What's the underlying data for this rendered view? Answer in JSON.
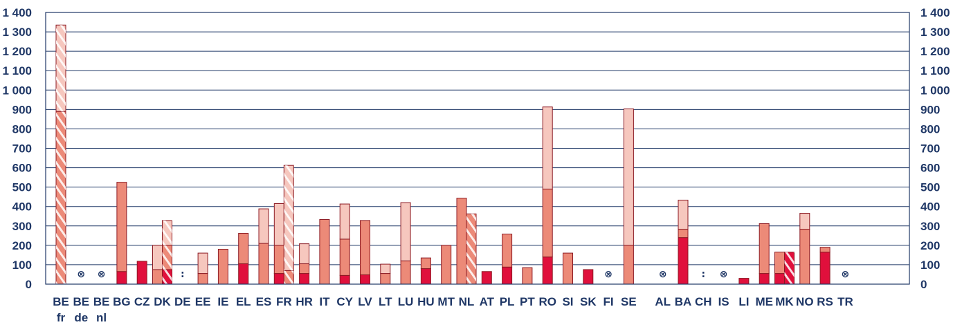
{
  "chart_data": {
    "type": "bar",
    "stacked": true,
    "ylim": [
      0,
      1400
    ],
    "yticks": [
      0,
      100,
      200,
      300,
      400,
      500,
      600,
      700,
      800,
      900,
      1000,
      1100,
      1200,
      1300,
      1400
    ],
    "ytick_labels": [
      "0",
      "100",
      "200",
      "300",
      "400",
      "500",
      "600",
      "700",
      "800",
      "900",
      "1 000",
      "1 100",
      "1 200",
      "1 300",
      "1 400"
    ],
    "grid": true,
    "legend": "none",
    "colors": {
      "dark": "#e0103c",
      "medium": "#ec8a78",
      "light": "#f6c7be",
      "outline": "#8c1a23"
    },
    "categories": [
      {
        "label": "BE",
        "sub": "fr",
        "bars": [
          {
            "segments": [
              [
                0,
                890,
                "medium"
              ],
              [
                890,
                1335,
                "light"
              ]
            ],
            "hatched": true
          }
        ]
      },
      {
        "label": "BE",
        "sub": "de",
        "symbol": "⊗",
        "bars": []
      },
      {
        "label": "BE",
        "sub": "nl",
        "symbol": "⊗",
        "bars": []
      },
      {
        "label": "BG",
        "bars": [
          {
            "segments": [
              [
                0,
                65,
                "dark"
              ],
              [
                65,
                525,
                "medium"
              ]
            ]
          }
        ]
      },
      {
        "label": "CZ",
        "bars": [
          {
            "segments": [
              [
                0,
                118,
                "dark"
              ]
            ]
          }
        ]
      },
      {
        "label": "DK",
        "bars": [
          {
            "segments": [
              [
                0,
                75,
                "medium"
              ],
              [
                75,
                200,
                "light"
              ]
            ]
          },
          {
            "segments": [
              [
                0,
                75,
                "dark"
              ],
              [
                75,
                200,
                "medium"
              ],
              [
                200,
                328,
                "light"
              ]
            ],
            "hatched": true
          }
        ]
      },
      {
        "label": "DE",
        "symbol": ":",
        "bars": []
      },
      {
        "label": "EE",
        "bars": [
          {
            "segments": [
              [
                0,
                55,
                "medium"
              ],
              [
                55,
                160,
                "light"
              ]
            ]
          }
        ]
      },
      {
        "label": "IE",
        "bars": [
          {
            "segments": [
              [
                0,
                180,
                "medium"
              ]
            ]
          }
        ]
      },
      {
        "label": "EL",
        "bars": [
          {
            "segments": [
              [
                0,
                105,
                "dark"
              ],
              [
                105,
                262,
                "medium"
              ]
            ]
          }
        ]
      },
      {
        "label": "ES",
        "bars": [
          {
            "segments": [
              [
                0,
                210,
                "medium"
              ],
              [
                210,
                388,
                "light"
              ]
            ]
          }
        ]
      },
      {
        "label": "FR",
        "bars": [
          {
            "segments": [
              [
                0,
                55,
                "dark"
              ],
              [
                55,
                200,
                "medium"
              ],
              [
                200,
                415,
                "light"
              ]
            ]
          },
          {
            "segments": [
              [
                0,
                70,
                "medium"
              ],
              [
                70,
                612,
                "light"
              ]
            ],
            "hatched": true
          }
        ]
      },
      {
        "label": "HR",
        "bars": [
          {
            "segments": [
              [
                0,
                55,
                "dark"
              ],
              [
                55,
                105,
                "medium"
              ],
              [
                105,
                208,
                "light"
              ]
            ]
          }
        ]
      },
      {
        "label": "IT",
        "bars": [
          {
            "segments": [
              [
                0,
                333,
                "medium"
              ]
            ]
          }
        ]
      },
      {
        "label": "CY",
        "bars": [
          {
            "segments": [
              [
                0,
                45,
                "dark"
              ],
              [
                45,
                232,
                "medium"
              ],
              [
                232,
                413,
                "light"
              ]
            ]
          }
        ]
      },
      {
        "label": "LV",
        "bars": [
          {
            "segments": [
              [
                0,
                48,
                "dark"
              ],
              [
                48,
                328,
                "medium"
              ]
            ]
          }
        ]
      },
      {
        "label": "LT",
        "bars": [
          {
            "segments": [
              [
                0,
                55,
                "medium"
              ],
              [
                55,
                103,
                "light"
              ]
            ]
          }
        ]
      },
      {
        "label": "LU",
        "bars": [
          {
            "segments": [
              [
                0,
                120,
                "medium"
              ],
              [
                120,
                420,
                "light"
              ]
            ]
          }
        ]
      },
      {
        "label": "HU",
        "bars": [
          {
            "segments": [
              [
                0,
                80,
                "dark"
              ],
              [
                80,
                135,
                "medium"
              ]
            ]
          }
        ]
      },
      {
        "label": "MT",
        "bars": [
          {
            "segments": [
              [
                0,
                200,
                "medium"
              ]
            ]
          }
        ]
      },
      {
        "label": "NL",
        "bars": [
          {
            "segments": [
              [
                0,
                443,
                "medium"
              ]
            ]
          },
          {
            "segments": [
              [
                0,
                362,
                "medium"
              ]
            ],
            "hatched": true
          }
        ]
      },
      {
        "label": "AT",
        "bars": [
          {
            "segments": [
              [
                0,
                65,
                "dark"
              ]
            ]
          }
        ]
      },
      {
        "label": "PL",
        "bars": [
          {
            "segments": [
              [
                0,
                88,
                "dark"
              ],
              [
                88,
                258,
                "medium"
              ]
            ]
          }
        ]
      },
      {
        "label": "PT",
        "bars": [
          {
            "segments": [
              [
                0,
                85,
                "medium"
              ]
            ]
          }
        ]
      },
      {
        "label": "RO",
        "bars": [
          {
            "segments": [
              [
                0,
                140,
                "dark"
              ],
              [
                140,
                490,
                "medium"
              ],
              [
                490,
                913,
                "light"
              ]
            ]
          }
        ]
      },
      {
        "label": "SI",
        "bars": [
          {
            "segments": [
              [
                0,
                160,
                "medium"
              ]
            ]
          }
        ]
      },
      {
        "label": "SK",
        "bars": [
          {
            "segments": [
              [
                0,
                75,
                "dark"
              ]
            ]
          }
        ]
      },
      {
        "label": "FI",
        "symbol": "⊗",
        "bars": []
      },
      {
        "label": "SE",
        "bars": [
          {
            "segments": [
              [
                0,
                200,
                "medium"
              ],
              [
                200,
                903,
                "light"
              ]
            ]
          }
        ]
      },
      {
        "label": "AL",
        "symbol": "⊗",
        "bars": [],
        "gap_before": true
      },
      {
        "label": "BA",
        "bars": [
          {
            "segments": [
              [
                0,
                240,
                "dark"
              ],
              [
                240,
                283,
                "medium"
              ],
              [
                283,
                433,
                "light"
              ]
            ]
          }
        ]
      },
      {
        "label": "CH",
        "symbol": ":",
        "bars": []
      },
      {
        "label": "IS",
        "symbol": "⊗",
        "bars": []
      },
      {
        "label": "LI",
        "bars": [
          {
            "segments": [
              [
                0,
                30,
                "dark"
              ]
            ]
          }
        ]
      },
      {
        "label": "ME",
        "bars": [
          {
            "segments": [
              [
                0,
                55,
                "dark"
              ],
              [
                55,
                312,
                "medium"
              ]
            ]
          }
        ]
      },
      {
        "label": "MK",
        "bars": [
          {
            "segments": [
              [
                0,
                55,
                "dark"
              ],
              [
                55,
                165,
                "medium"
              ]
            ]
          },
          {
            "segments": [
              [
                0,
                165,
                "dark"
              ]
            ],
            "hatched": true
          }
        ]
      },
      {
        "label": "NO",
        "bars": [
          {
            "segments": [
              [
                0,
                283,
                "medium"
              ],
              [
                283,
                365,
                "light"
              ]
            ]
          }
        ]
      },
      {
        "label": "RS",
        "bars": [
          {
            "segments": [
              [
                0,
                165,
                "dark"
              ],
              [
                165,
                190,
                "medium"
              ]
            ]
          }
        ]
      },
      {
        "label": "TR",
        "symbol": "⊗",
        "bars": []
      }
    ]
  }
}
